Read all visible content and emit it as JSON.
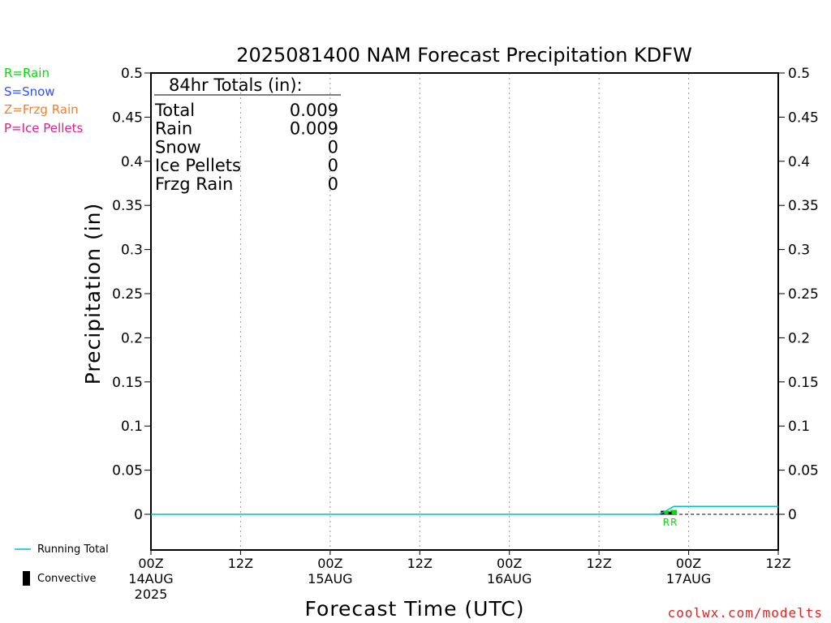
{
  "chart_data": {
    "type": "line",
    "title": "2025081400 NAM Forecast Precipitation KDFW",
    "xlabel": "Forecast Time (UTC)",
    "ylabel": "Precipitation (in)",
    "ylim": [
      0,
      0.5
    ],
    "y_ticks": [
      "0",
      "0.05",
      "0.1",
      "0.15",
      "0.2",
      "0.25",
      "0.3",
      "0.35",
      "0.4",
      "0.45",
      "0.5"
    ],
    "x_unit": "forecast hour",
    "xlim": [
      0,
      84
    ],
    "x_ticks": [
      {
        "hour": 0,
        "time": "00Z",
        "date": "14AUG",
        "year": "2025"
      },
      {
        "hour": 12,
        "time": "12Z",
        "date": "",
        "year": ""
      },
      {
        "hour": 24,
        "time": "00Z",
        "date": "15AUG",
        "year": ""
      },
      {
        "hour": 36,
        "time": "12Z",
        "date": "",
        "year": ""
      },
      {
        "hour": 48,
        "time": "00Z",
        "date": "16AUG",
        "year": ""
      },
      {
        "hour": 60,
        "time": "12Z",
        "date": "",
        "year": ""
      },
      {
        "hour": 72,
        "time": "00Z",
        "date": "17AUG",
        "year": ""
      },
      {
        "hour": 84,
        "time": "12Z",
        "date": "",
        "year": ""
      }
    ],
    "grid": "vertical dotted",
    "series": [
      {
        "name": "Running Total",
        "color": "#00c0c0",
        "x": [
          0,
          68,
          69,
          70,
          84
        ],
        "values": [
          0,
          0,
          0.004,
          0.009,
          0.009
        ]
      }
    ],
    "precip_bars": [
      {
        "hour": 69,
        "value": 0.004,
        "type_label": "R"
      },
      {
        "hour": 70,
        "value": 0.005,
        "type_label": "R"
      }
    ],
    "convective_bars": [
      {
        "hour": 68.5,
        "value": 0.004
      },
      {
        "hour": 69.5,
        "value": 0.003
      }
    ],
    "baseline_dashed_from_hour": 70,
    "totals_box": {
      "header": "84hr Totals (in):",
      "rows": [
        {
          "label": "Total",
          "value": "0.009"
        },
        {
          "label": "Rain",
          "value": "0.009"
        },
        {
          "label": "Snow",
          "value": "0"
        },
        {
          "label": "Ice Pellets",
          "value": "0"
        },
        {
          "label": "Frzg Rain",
          "value": "0"
        }
      ]
    },
    "type_legend": [
      {
        "text": "R=Rain",
        "color": "#00e000"
      },
      {
        "text": "S=Snow",
        "color": "#3050ff"
      },
      {
        "text": "Z=Frzg Rain",
        "color": "#f08030"
      },
      {
        "text": "P=Ice Pellets",
        "color": "#e0208c"
      }
    ],
    "bottom_legend": {
      "running_total": "Running Total",
      "convective": "Convective"
    },
    "credit": "coolwx.com/modelts",
    "credit_color": "#e02020",
    "rain_color": "#00e000"
  }
}
